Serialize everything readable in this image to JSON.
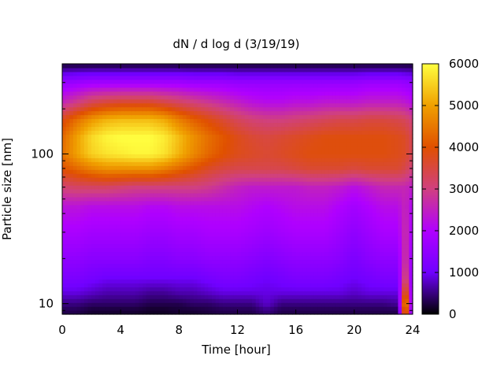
{
  "chart_data": {
    "type": "heatmap",
    "title": "dN / d log d (3/19/19)",
    "xlabel": "Time [hour]",
    "ylabel": "Particle size [nm]",
    "xlim": [
      0,
      24
    ],
    "x_ticks": [
      0,
      4,
      8,
      12,
      16,
      20,
      24
    ],
    "y_scale": "log",
    "ylim": [
      8.5,
      400
    ],
    "y_ticks": [
      10,
      100
    ],
    "grid": false,
    "colorbar": {
      "range": [
        0,
        6000
      ],
      "ticks": [
        0,
        1000,
        2000,
        3000,
        4000,
        5000,
        6000
      ],
      "colors": [
        "#000000",
        "#7000ff",
        "#b000ff",
        "#d04080",
        "#e05000",
        "#f0a000",
        "#ffff40"
      ]
    },
    "size_nm": [
      9,
      10,
      12,
      15,
      20,
      30,
      45,
      60,
      80,
      100,
      130,
      170,
      220,
      300,
      400
    ],
    "time_hour": [
      0,
      1,
      2,
      3,
      4,
      5,
      6,
      7,
      8,
      9,
      10,
      11,
      12,
      13,
      14,
      15,
      16,
      17,
      18,
      19,
      20,
      21,
      22,
      23,
      23.5,
      24
    ],
    "values": [
      [
        300,
        300,
        200,
        200,
        200,
        200,
        150,
        150,
        200,
        200,
        250,
        300,
        300,
        300,
        500,
        300,
        300,
        300,
        300,
        300,
        300,
        300,
        300,
        300,
        5000,
        900
      ],
      [
        500,
        500,
        400,
        400,
        400,
        400,
        300,
        300,
        300,
        400,
        400,
        500,
        500,
        500,
        800,
        500,
        500,
        500,
        500,
        500,
        500,
        500,
        500,
        600,
        5500,
        1000
      ],
      [
        900,
        900,
        800,
        700,
        700,
        700,
        600,
        600,
        700,
        700,
        800,
        900,
        900,
        900,
        900,
        900,
        900,
        900,
        900,
        900,
        800,
        900,
        900,
        900,
        4500,
        1100
      ],
      [
        1200,
        1200,
        1100,
        1000,
        1000,
        1000,
        1000,
        1000,
        1000,
        1000,
        1100,
        1200,
        1200,
        1100,
        1000,
        1100,
        1200,
        1200,
        1200,
        1100,
        1000,
        1100,
        1200,
        1200,
        3500,
        1200
      ],
      [
        1500,
        1500,
        1400,
        1400,
        1400,
        1400,
        1300,
        1300,
        1400,
        1400,
        1500,
        1500,
        1500,
        1400,
        1300,
        1400,
        1500,
        1500,
        1500,
        1400,
        1200,
        1400,
        1500,
        1500,
        3000,
        1500
      ],
      [
        1900,
        1900,
        1800,
        1800,
        1800,
        1800,
        1700,
        1700,
        1800,
        1800,
        1900,
        1900,
        1900,
        1800,
        1700,
        1800,
        1900,
        1900,
        1900,
        1700,
        1500,
        1700,
        1900,
        1900,
        2800,
        1800
      ],
      [
        2300,
        2300,
        2200,
        2200,
        2200,
        2200,
        2100,
        2100,
        2200,
        2200,
        2200,
        2200,
        2200,
        2100,
        2000,
        2100,
        2200,
        2200,
        2200,
        2000,
        1800,
        2000,
        2200,
        2200,
        2600,
        2000
      ],
      [
        3100,
        3200,
        3200,
        3200,
        3100,
        3000,
        3000,
        3000,
        3000,
        3000,
        2900,
        2700,
        2500,
        2400,
        2400,
        2400,
        2400,
        2500,
        2500,
        2400,
        2200,
        2400,
        2600,
        2600,
        2600,
        2400
      ],
      [
        4000,
        4300,
        4600,
        4800,
        4800,
        4800,
        4800,
        4600,
        4300,
        4000,
        3700,
        3500,
        3400,
        3400,
        3400,
        3400,
        3500,
        3600,
        3600,
        3600,
        3500,
        3600,
        3600,
        3600,
        3400,
        3000
      ],
      [
        4400,
        5000,
        5500,
        5700,
        5800,
        5900,
        5900,
        5700,
        5200,
        4700,
        4300,
        4000,
        3800,
        3700,
        3600,
        3700,
        3800,
        3900,
        3900,
        3900,
        3900,
        3900,
        3900,
        3800,
        3700,
        3300
      ],
      [
        4300,
        5000,
        5600,
        5900,
        6000,
        6000,
        6000,
        5800,
        5300,
        4800,
        4400,
        4100,
        3800,
        3600,
        3500,
        3600,
        3700,
        3800,
        3900,
        3900,
        3900,
        3900,
        3900,
        3800,
        3700,
        3300
      ],
      [
        3800,
        4400,
        4900,
        5200,
        5300,
        5300,
        5300,
        5100,
        4600,
        4200,
        3900,
        3600,
        3300,
        3100,
        3000,
        3000,
        3100,
        3200,
        3300,
        3400,
        3400,
        3500,
        3500,
        3400,
        3300,
        3000
      ],
      [
        2600,
        3000,
        3400,
        3600,
        3700,
        3700,
        3700,
        3500,
        3300,
        3100,
        2900,
        2700,
        2500,
        2300,
        2200,
        2200,
        2300,
        2300,
        2400,
        2400,
        2400,
        2500,
        2500,
        2500,
        2400,
        2200
      ],
      [
        1600,
        1700,
        1800,
        1800,
        1800,
        1800,
        1800,
        1800,
        1800,
        1700,
        1700,
        1700,
        1600,
        1600,
        1600,
        1600,
        1600,
        1600,
        1600,
        1600,
        1600,
        1700,
        1700,
        1700,
        1600,
        1500
      ],
      [
        200,
        200,
        200,
        200,
        200,
        200,
        200,
        200,
        200,
        200,
        200,
        200,
        200,
        200,
        200,
        200,
        200,
        200,
        200,
        200,
        200,
        200,
        200,
        200,
        200,
        200
      ]
    ]
  }
}
